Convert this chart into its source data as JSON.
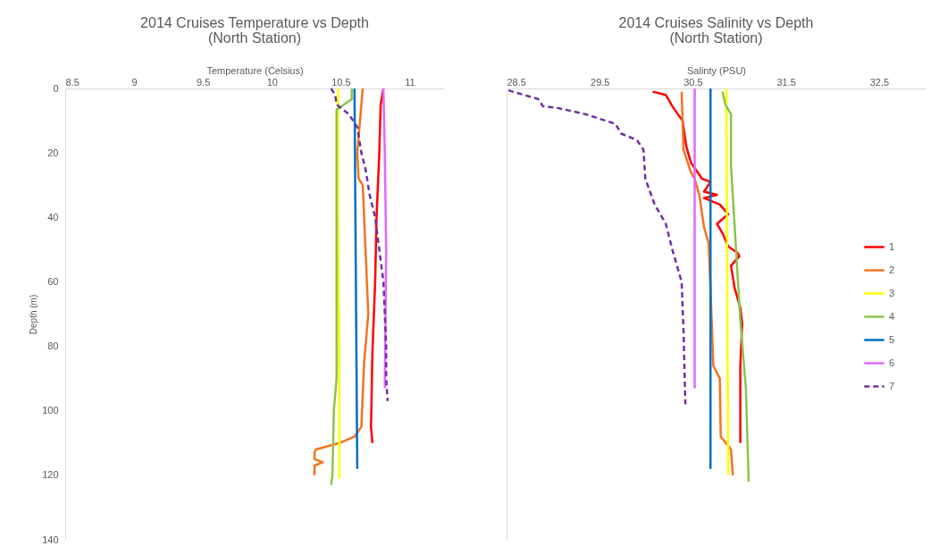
{
  "chart_data": [
    {
      "type": "line",
      "title": "2014 Cruises Temperature vs Depth",
      "subtitle": "(North Station)",
      "xlabel": "Temperature (Celsius)",
      "ylabel": "Depth (m)",
      "xlim": [
        8.5,
        11.25
      ],
      "xticks": [
        8.5,
        9,
        9.5,
        10,
        10.5,
        11
      ],
      "ylim": [
        140,
        0
      ],
      "yticks": [
        0,
        20,
        40,
        60,
        80,
        100,
        120,
        140
      ],
      "grid": false,
      "legend": "right",
      "series": [
        {
          "name": "1",
          "color": "#ff0000",
          "line_style": "solid",
          "x": [
            10.81,
            10.79,
            10.78,
            10.76,
            10.75,
            10.73,
            10.72,
            10.73
          ],
          "values": [
            0,
            5,
            20,
            40,
            60,
            82,
            105,
            110
          ]
        },
        {
          "name": "2",
          "color": "#f47321",
          "line_style": "solid",
          "x": [
            10.66,
            10.65,
            10.62,
            10.63,
            10.66,
            10.68,
            10.7,
            10.67,
            10.66,
            10.65,
            10.6,
            10.49,
            10.32,
            10.31,
            10.31,
            10.37,
            10.31,
            10.31
          ],
          "values": [
            0,
            5,
            20,
            28,
            30,
            50,
            70,
            85,
            95,
            105,
            108,
            110,
            112,
            113,
            115,
            116,
            117,
            120
          ]
        },
        {
          "name": "3",
          "color": "#ffff00",
          "line_style": "solid",
          "x": [
            10.48,
            10.48,
            10.49,
            10.49
          ],
          "values": [
            0,
            40,
            90,
            121
          ]
        },
        {
          "name": "4",
          "color": "#8bc34a",
          "line_style": "solid",
          "x": [
            10.58,
            10.58,
            10.47,
            10.47,
            10.47,
            10.45,
            10.44,
            10.43
          ],
          "values": [
            0,
            3.3,
            6.6,
            50,
            90,
            100,
            120,
            123
          ]
        },
        {
          "name": "5",
          "color": "#0070c0",
          "line_style": "solid",
          "x": [
            10.6,
            10.61,
            10.62
          ],
          "values": [
            0,
            60,
            118
          ]
        },
        {
          "name": "6",
          "color": "#e066ff",
          "line_style": "solid",
          "x": [
            10.81,
            10.82,
            10.83,
            10.82
          ],
          "values": [
            0,
            20,
            50,
            93
          ]
        },
        {
          "name": "7",
          "color": "#7030a0",
          "line_style": "dashed",
          "x": [
            10.43,
            10.46,
            10.47,
            10.56,
            10.62,
            10.65,
            10.68,
            10.71,
            10.75,
            10.78,
            10.81,
            10.82,
            10.83,
            10.83,
            10.84
          ],
          "values": [
            0,
            2,
            5,
            8,
            12,
            20,
            25,
            33,
            40,
            50,
            60,
            70,
            80,
            90,
            97
          ]
        }
      ]
    },
    {
      "type": "line",
      "title": "2014 Cruises Salinity vs Depth",
      "subtitle": "(North Station)",
      "xlabel": "Salinty (PSU)",
      "xlim": [
        28.5,
        33
      ],
      "xticks": [
        28.5,
        29.5,
        30.5,
        31.5,
        32.5
      ],
      "ylim": [
        140,
        0
      ],
      "yticks": [
        0,
        20,
        40,
        60,
        80,
        100,
        120,
        140
      ],
      "grid": false,
      "legend": "right",
      "tick_labels": "x",
      "series": [
        {
          "name": "1",
          "color": "#ff0000",
          "line_style": "solid",
          "x": [
            30.07,
            30.21,
            30.28,
            30.34,
            30.39,
            30.43,
            30.48,
            30.6,
            30.69,
            30.62,
            30.76,
            30.62,
            30.79,
            30.88,
            30.76,
            30.82,
            30.88,
            30.98,
            31.0,
            30.91,
            30.95,
            31.01,
            31.03,
            31.01,
            31.01
          ],
          "values": [
            1,
            2,
            5.5,
            8,
            10,
            18,
            23,
            28,
            29,
            32,
            33,
            34,
            36,
            39,
            42,
            45,
            49,
            51,
            52,
            55,
            62,
            68,
            73,
            86,
            110
          ]
        },
        {
          "name": "2",
          "color": "#f47321",
          "line_style": "solid",
          "x": [
            30.38,
            30.39,
            30.4,
            30.48,
            30.52,
            30.57,
            30.62,
            30.67,
            30.69,
            30.72,
            30.79,
            30.8,
            30.91,
            30.93
          ],
          "values": [
            1,
            10,
            19,
            26,
            28,
            33,
            43,
            48,
            62,
            86,
            90,
            108,
            112,
            120
          ]
        },
        {
          "name": "3",
          "color": "#ffff00",
          "line_style": "solid",
          "x": [
            30.86,
            30.87,
            30.88
          ],
          "values": [
            0,
            60,
            120
          ]
        },
        {
          "name": "4",
          "color": "#8bc34a",
          "line_style": "solid",
          "x": [
            30.82,
            30.85,
            30.91,
            30.91,
            30.95,
            31.01,
            31.07,
            31.1
          ],
          "values": [
            1,
            5,
            8,
            24,
            43,
            72,
            93,
            122
          ]
        },
        {
          "name": "5",
          "color": "#0070c0",
          "line_style": "solid",
          "x": [
            30.69,
            30.69,
            30.69
          ],
          "values": [
            0,
            60,
            118
          ]
        },
        {
          "name": "6",
          "color": "#e066ff",
          "line_style": "solid",
          "x": [
            30.52,
            30.52,
            30.52
          ],
          "values": [
            0,
            50,
            93
          ]
        },
        {
          "name": "7",
          "color": "#7030a0",
          "line_style": "dashed",
          "x": [
            28.52,
            28.84,
            28.89,
            29.04,
            29.35,
            29.67,
            29.73,
            29.9,
            29.97,
            29.99,
            30.09,
            30.21,
            30.28,
            30.38,
            30.4,
            30.42
          ],
          "values": [
            0.6,
            3.3,
            5.5,
            6,
            8,
            11,
            14,
            16,
            19,
            28,
            36,
            42,
            50,
            60,
            75,
            98
          ]
        }
      ]
    }
  ]
}
